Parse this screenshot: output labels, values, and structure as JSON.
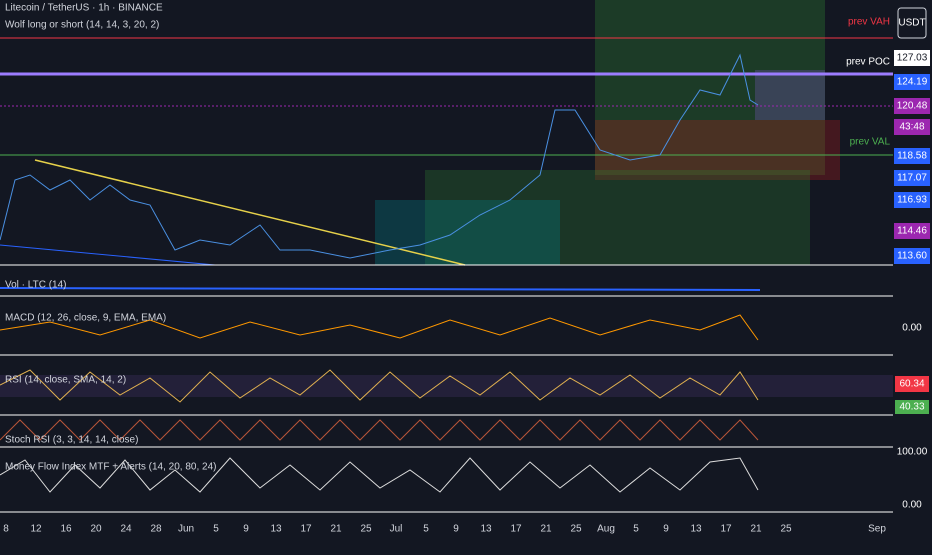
{
  "header": {
    "symbol": "Litecoin / TetherUS · 1h · BINANCE",
    "indicator": "Wolf long or short (14, 14, 3, 20, 2)",
    "currency": "USDT"
  },
  "levels": {
    "vah": "prev VAH",
    "poc": "prev POC",
    "val": "prev VAL"
  },
  "price_axis": [
    "127.03",
    "124.19",
    "120.48",
    "43:48",
    "118.58",
    "117.07",
    "116.93",
    "114.46",
    "113.60"
  ],
  "panels": {
    "volume": "Vol · LTC (14)",
    "macd": "MACD (12, 26, close, 9, EMA, EMA)",
    "macd_value": "0.00",
    "rsi": "RSI (14, close, SMA, 14, 2)",
    "rsi_high": "60.34",
    "rsi_low": "40.33",
    "stoch": "Stoch RSI (3, 3, 14, 14, close)",
    "stoch_high": "100.00",
    "mfi": "Money Flow Index MTF + Alerts (14, 20, 80, 24)",
    "mfi_low": "0.00"
  },
  "dates": [
    "8",
    "12",
    "16",
    "20",
    "24",
    "28",
    "Jun",
    "5",
    "9",
    "13",
    "17",
    "21",
    "25",
    "Jul",
    "5",
    "9",
    "13",
    "17",
    "21",
    "25",
    "Aug",
    "5",
    "9",
    "13",
    "17",
    "21",
    "25",
    "Sep"
  ]
}
